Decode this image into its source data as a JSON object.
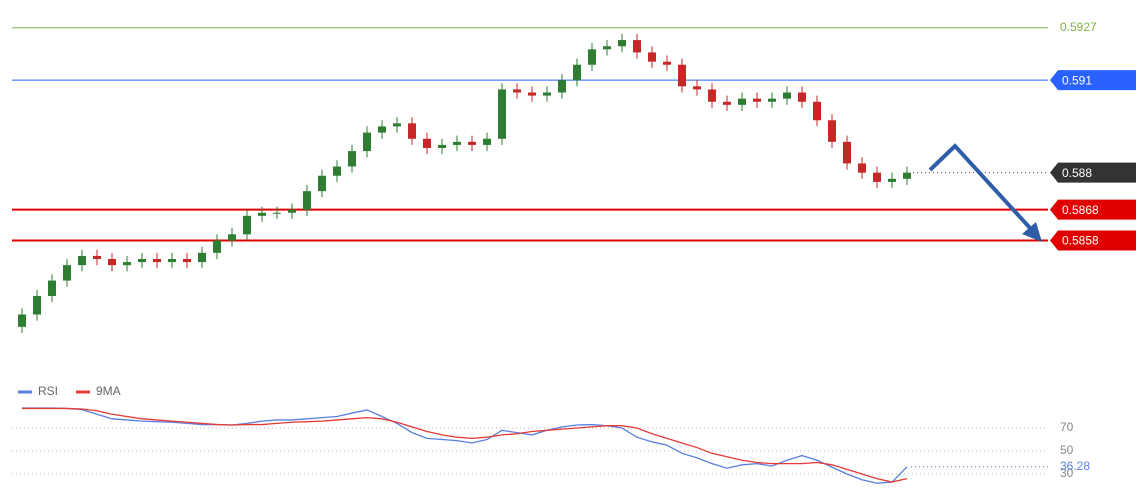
{
  "chart_data": [
    {
      "type": "candlestick",
      "open": [
        0.583,
        0.5834,
        0.584,
        0.5845,
        0.585,
        0.5853,
        0.5852,
        0.585,
        0.5851,
        0.5852,
        0.5851,
        0.5852,
        0.5851,
        0.5854,
        0.5858,
        0.586,
        0.5866,
        0.5867,
        0.5867,
        0.5868,
        0.5874,
        0.5879,
        0.5882,
        0.5887,
        0.5893,
        0.5895,
        0.5896,
        0.5891,
        0.5888,
        0.5889,
        0.589,
        0.5889,
        0.5891,
        0.5907,
        0.5906,
        0.5905,
        0.5906,
        0.591,
        0.5915,
        0.592,
        0.5921,
        0.5923,
        0.5919,
        0.5916,
        0.5915,
        0.5908,
        0.5907,
        0.5903,
        0.5902,
        0.5904,
        0.5903,
        0.5904,
        0.5906,
        0.5903,
        0.5897,
        0.589,
        0.5883,
        0.588,
        0.5877,
        0.5878
      ],
      "high": [
        0.5836,
        0.5842,
        0.5847,
        0.5852,
        0.5855,
        0.5855,
        0.5854,
        0.5853,
        0.5854,
        0.5854,
        0.5854,
        0.5854,
        0.5856,
        0.586,
        0.5862,
        0.5868,
        0.5869,
        0.5869,
        0.587,
        0.5876,
        0.5881,
        0.5884,
        0.5889,
        0.5895,
        0.5897,
        0.5898,
        0.5898,
        0.5893,
        0.5891,
        0.5892,
        0.5892,
        0.5893,
        0.5909,
        0.5909,
        0.5908,
        0.5908,
        0.5912,
        0.5917,
        0.5922,
        0.5923,
        0.5925,
        0.5925,
        0.5921,
        0.5918,
        0.5917,
        0.591,
        0.5909,
        0.5905,
        0.5906,
        0.5906,
        0.5906,
        0.5908,
        0.5908,
        0.5905,
        0.5899,
        0.5892,
        0.5885,
        0.5882,
        0.588,
        0.5882
      ],
      "low": [
        0.5828,
        0.5832,
        0.5838,
        0.5843,
        0.5848,
        0.585,
        0.5848,
        0.5848,
        0.5849,
        0.5849,
        0.5849,
        0.5849,
        0.5849,
        0.5852,
        0.5856,
        0.5858,
        0.5864,
        0.5865,
        0.5865,
        0.5866,
        0.5872,
        0.5877,
        0.588,
        0.5885,
        0.5891,
        0.5893,
        0.5889,
        0.5886,
        0.5886,
        0.5887,
        0.5887,
        0.5887,
        0.5889,
        0.5904,
        0.5903,
        0.5903,
        0.5904,
        0.5908,
        0.5913,
        0.5918,
        0.5919,
        0.5917,
        0.5914,
        0.5913,
        0.5906,
        0.5905,
        0.5901,
        0.59,
        0.59,
        0.5901,
        0.5901,
        0.5902,
        0.5901,
        0.5895,
        0.5888,
        0.5881,
        0.5878,
        0.5875,
        0.5875,
        0.5876
      ],
      "close": [
        0.5834,
        0.584,
        0.5845,
        0.585,
        0.5853,
        0.5852,
        0.585,
        0.5851,
        0.5852,
        0.5851,
        0.5852,
        0.5851,
        0.5854,
        0.5858,
        0.586,
        0.5866,
        0.5867,
        0.5867,
        0.5868,
        0.5874,
        0.5879,
        0.5882,
        0.5887,
        0.5893,
        0.5895,
        0.5896,
        0.5891,
        0.5888,
        0.5889,
        0.589,
        0.5889,
        0.5891,
        0.5907,
        0.5906,
        0.5905,
        0.5906,
        0.591,
        0.5915,
        0.592,
        0.5921,
        0.5923,
        0.5919,
        0.5916,
        0.5915,
        0.5908,
        0.5907,
        0.5903,
        0.5902,
        0.5904,
        0.5903,
        0.5904,
        0.5906,
        0.5903,
        0.5897,
        0.589,
        0.5883,
        0.588,
        0.5877,
        0.5878,
        0.588
      ],
      "up_color": "#2e7d32",
      "down_color": "#c62828",
      "ylim": [
        0.5816,
        0.5936
      ],
      "levels": [
        {
          "value": 0.5927,
          "color": "#7cb342",
          "width": 1,
          "label_box": false
        },
        {
          "value": 0.591,
          "color": "#2962ff",
          "width": 1,
          "label_box": true
        },
        {
          "value": 0.5868,
          "color": "#e00000",
          "width": 2,
          "label_box": true
        },
        {
          "value": 0.5858,
          "color": "#e00000",
          "width": 2,
          "label_box": true
        }
      ],
      "current_color": "#333333"
    },
    {
      "type": "line",
      "series": [
        {
          "name": "RSI",
          "color": "#5b7fe0",
          "values": [
            87.4,
            87.4,
            87.4,
            87,
            86,
            82,
            78,
            77,
            76,
            75.5,
            75,
            74,
            73,
            73,
            72.6,
            74,
            76,
            77,
            77,
            78,
            79,
            80,
            83,
            85.7,
            80,
            74,
            66,
            61,
            60,
            59,
            57,
            60,
            68,
            66,
            64,
            68,
            71,
            72.6,
            73,
            72,
            70,
            62,
            58,
            55,
            48,
            44,
            39,
            35,
            38,
            39,
            37,
            42,
            46,
            42,
            36,
            30,
            25,
            22,
            23,
            36.28
          ]
        },
        {
          "name": "9MA",
          "color": "#e53935",
          "values": [
            87,
            87,
            87,
            87,
            86.5,
            85,
            82,
            80,
            78,
            77,
            76,
            75,
            74,
            73,
            72.6,
            73,
            73,
            74,
            75,
            75.5,
            76,
            77,
            78,
            79,
            78,
            75,
            71,
            67,
            64,
            62,
            61,
            62,
            64,
            65,
            67,
            68,
            69,
            70,
            71,
            72,
            72,
            70,
            65,
            61,
            57,
            53,
            48,
            45,
            42,
            40,
            39,
            39,
            39,
            40,
            38,
            34,
            30,
            26,
            23,
            26
          ]
        }
      ],
      "ylim": [
        7.4,
        107.4
      ],
      "yticks": [
        70,
        50,
        30
      ]
    }
  ]
}
